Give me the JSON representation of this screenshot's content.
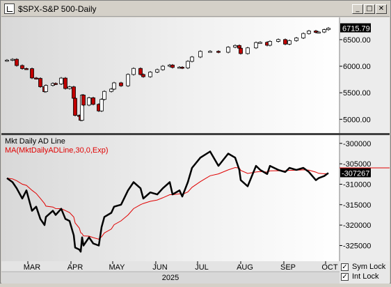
{
  "window": {
    "title": "$SPX-S&P 500-Daily",
    "buttons": {
      "minimize": "_",
      "maximize": "□",
      "close": "✕"
    }
  },
  "price_panel": {
    "last_price": "6715.79",
    "y_ticks": [
      "6500.00",
      "6000.00",
      "5500.00",
      "5000.00"
    ]
  },
  "indicator_panel": {
    "label": "Mkt Daily AD Line",
    "ma_label": "MA(MktDailyADLine,30,0,Exp)",
    "last_value": "-307267",
    "y_ticks": [
      "-300000",
      "-305000",
      "-310000",
      "-315000",
      "-320000",
      "-325000"
    ]
  },
  "x_axis": {
    "months": [
      "MAR",
      "APR",
      "MAY",
      "JUN",
      "JUL",
      "AUG",
      "SEP",
      "OCT"
    ],
    "year": "2025"
  },
  "options": {
    "sym_lock": "Sym Lock",
    "int_lock": "Int Lock",
    "sym_lock_checked": true,
    "int_lock_checked": true
  },
  "colors": {
    "down_candle": "#c00000",
    "up_candle": "#ffffff",
    "ma_line": "#e00000",
    "ad_line": "#000000",
    "value_box": "#000000"
  },
  "chart_data": {
    "type": "line",
    "title": "$SPX-S&P 500-Daily",
    "series": [
      {
        "name": "$SPX-S&P 500-Daily",
        "points": [
          [
            "2025-02-14",
            6114
          ],
          [
            "2025-02-18",
            6130
          ],
          [
            "2025-02-21",
            6013
          ],
          [
            "2025-02-25",
            5955
          ],
          [
            "2025-02-28",
            5954
          ],
          [
            "2025-03-04",
            5778
          ],
          [
            "2025-03-07",
            5770
          ],
          [
            "2025-03-10",
            5614
          ],
          [
            "2025-03-13",
            5521
          ],
          [
            "2025-03-14",
            5638
          ],
          [
            "2025-03-19",
            5675
          ],
          [
            "2025-03-21",
            5667
          ],
          [
            "2025-03-25",
            5776
          ],
          [
            "2025-03-28",
            5580
          ],
          [
            "2025-03-31",
            5611
          ],
          [
            "2025-04-03",
            5396
          ],
          [
            "2025-04-04",
            5074
          ],
          [
            "2025-04-07",
            5062
          ],
          [
            "2025-04-08",
            4982
          ],
          [
            "2025-04-09",
            5456
          ],
          [
            "2025-04-10",
            5268
          ],
          [
            "2025-04-14",
            5405
          ],
          [
            "2025-04-17",
            5282
          ],
          [
            "2025-04-21",
            5158
          ],
          [
            "2025-04-23",
            5375
          ],
          [
            "2025-04-25",
            5525
          ],
          [
            "2025-04-30",
            5569
          ],
          [
            "2025-05-02",
            5686
          ],
          [
            "2025-05-07",
            5631
          ],
          [
            "2025-05-12",
            5844
          ],
          [
            "2025-05-16",
            5958
          ],
          [
            "2025-05-21",
            5844
          ],
          [
            "2025-05-23",
            5802
          ],
          [
            "2025-05-28",
            5889
          ],
          [
            "2025-06-02",
            5935
          ],
          [
            "2025-06-06",
            6000
          ],
          [
            "2025-06-11",
            6022
          ],
          [
            "2025-06-13",
            5977
          ],
          [
            "2025-06-18",
            5981
          ],
          [
            "2025-06-20",
            5967
          ],
          [
            "2025-06-24",
            6092
          ],
          [
            "2025-06-27",
            6173
          ],
          [
            "2025-07-03",
            6279
          ],
          [
            "2025-07-10",
            6280
          ],
          [
            "2025-07-16",
            6263
          ],
          [
            "2025-07-23",
            6358
          ],
          [
            "2025-07-28",
            6390
          ],
          [
            "2025-07-31",
            6339
          ],
          [
            "2025-08-01",
            6238
          ],
          [
            "2025-08-06",
            6345
          ],
          [
            "2025-08-12",
            6445
          ],
          [
            "2025-08-15",
            6449
          ],
          [
            "2025-08-20",
            6395
          ],
          [
            "2025-08-22",
            6467
          ],
          [
            "2025-08-28",
            6502
          ],
          [
            "2025-09-02",
            6416
          ],
          [
            "2025-09-05",
            6482
          ],
          [
            "2025-09-10",
            6532
          ],
          [
            "2025-09-15",
            6615
          ],
          [
            "2025-09-19",
            6664
          ],
          [
            "2025-09-24",
            6637
          ],
          [
            "2025-09-26",
            6643
          ],
          [
            "2025-09-30",
            6688
          ],
          [
            "2025-10-03",
            6716
          ]
        ]
      },
      {
        "name": "Mkt Daily AD Line",
        "points": [
          [
            "2025-02-14",
            -308500
          ],
          [
            "2025-02-18",
            -309500
          ],
          [
            "2025-02-21",
            -311000
          ],
          [
            "2025-02-25",
            -313500
          ],
          [
            "2025-02-28",
            -311500
          ],
          [
            "2025-03-04",
            -316500
          ],
          [
            "2025-03-07",
            -315500
          ],
          [
            "2025-03-10",
            -318500
          ],
          [
            "2025-03-13",
            -320000
          ],
          [
            "2025-03-14",
            -318000
          ],
          [
            "2025-03-19",
            -316500
          ],
          [
            "2025-03-21",
            -317500
          ],
          [
            "2025-03-25",
            -316000
          ],
          [
            "2025-03-28",
            -318500
          ],
          [
            "2025-03-31",
            -319000
          ],
          [
            "2025-04-03",
            -322500
          ],
          [
            "2025-04-04",
            -325500
          ],
          [
            "2025-04-07",
            -326000
          ],
          [
            "2025-04-08",
            -326500
          ],
          [
            "2025-04-09",
            -323000
          ],
          [
            "2025-04-10",
            -325000
          ],
          [
            "2025-04-14",
            -323000
          ],
          [
            "2025-04-17",
            -324500
          ],
          [
            "2025-04-21",
            -325000
          ],
          [
            "2025-04-23",
            -320500
          ],
          [
            "2025-04-25",
            -318000
          ],
          [
            "2025-04-30",
            -317000
          ],
          [
            "2025-05-02",
            -315500
          ],
          [
            "2025-05-07",
            -315000
          ],
          [
            "2025-05-12",
            -311500
          ],
          [
            "2025-05-16",
            -309500
          ],
          [
            "2025-05-21",
            -311000
          ],
          [
            "2025-05-23",
            -313500
          ],
          [
            "2025-05-28",
            -312000
          ],
          [
            "2025-06-02",
            -312500
          ],
          [
            "2025-06-06",
            -311000
          ],
          [
            "2025-06-11",
            -309500
          ],
          [
            "2025-06-13",
            -312500
          ],
          [
            "2025-06-18",
            -311500
          ],
          [
            "2025-06-20",
            -313000
          ],
          [
            "2025-06-24",
            -309500
          ],
          [
            "2025-06-27",
            -306000
          ],
          [
            "2025-07-03",
            -303500
          ],
          [
            "2025-07-10",
            -302000
          ],
          [
            "2025-07-16",
            -305500
          ],
          [
            "2025-07-23",
            -302500
          ],
          [
            "2025-07-28",
            -303500
          ],
          [
            "2025-07-31",
            -306500
          ],
          [
            "2025-08-01",
            -309000
          ],
          [
            "2025-08-06",
            -310500
          ],
          [
            "2025-08-12",
            -305500
          ],
          [
            "2025-08-15",
            -306500
          ],
          [
            "2025-08-20",
            -307500
          ],
          [
            "2025-08-22",
            -305500
          ],
          [
            "2025-08-28",
            -306500
          ],
          [
            "2025-09-02",
            -307000
          ],
          [
            "2025-09-05",
            -306000
          ],
          [
            "2025-09-10",
            -306500
          ],
          [
            "2025-09-15",
            -306000
          ],
          [
            "2025-09-19",
            -307000
          ],
          [
            "2025-09-24",
            -309000
          ],
          [
            "2025-09-26",
            -308500
          ],
          [
            "2025-09-30",
            -308000
          ],
          [
            "2025-10-03",
            -307267
          ]
        ]
      }
    ],
    "x_type": "date",
    "ylim_price": [
      4820,
      6840
    ],
    "ylim_ad": [
      -328500,
      -298500
    ],
    "grid": false,
    "legend": "top-left"
  }
}
